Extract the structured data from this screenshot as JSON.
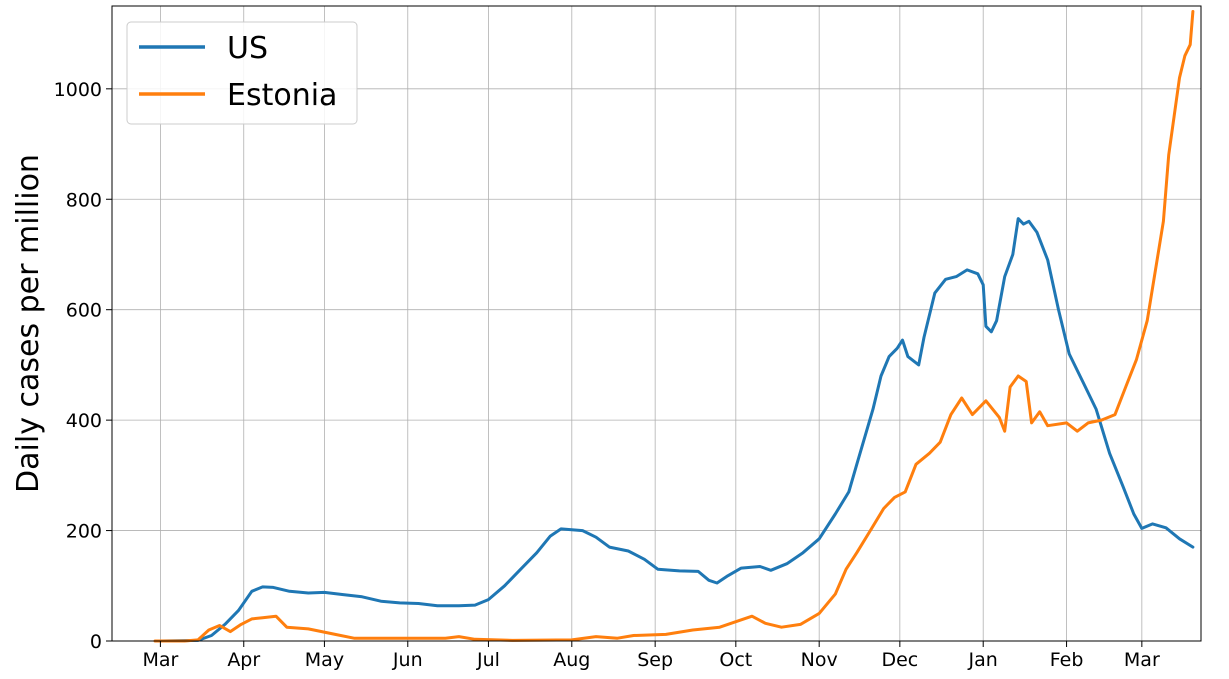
{
  "chart_data": {
    "type": "line",
    "title": "",
    "xlabel": "",
    "ylabel": "Daily cases per million",
    "ylim": [
      0,
      1150
    ],
    "xlim": [
      "2020-02-12",
      "2021-03-23"
    ],
    "yticks": [
      0,
      200,
      400,
      600,
      800,
      1000
    ],
    "xticks": [
      {
        "date": "2020-03-01",
        "label": "Mar"
      },
      {
        "date": "2020-04-01",
        "label": "Apr"
      },
      {
        "date": "2020-05-01",
        "label": "May"
      },
      {
        "date": "2020-06-01",
        "label": "Jun"
      },
      {
        "date": "2020-07-01",
        "label": "Jul"
      },
      {
        "date": "2020-08-01",
        "label": "Aug"
      },
      {
        "date": "2020-09-01",
        "label": "Sep"
      },
      {
        "date": "2020-10-01",
        "label": "Oct"
      },
      {
        "date": "2020-11-01",
        "label": "Nov"
      },
      {
        "date": "2020-12-01",
        "label": "Dec"
      },
      {
        "date": "2021-01-01",
        "label": "Jan"
      },
      {
        "date": "2021-02-01",
        "label": "Feb"
      },
      {
        "date": "2021-03-01",
        "label": "Mar"
      }
    ],
    "grid": true,
    "legend_position": "top-left",
    "series": [
      {
        "name": "US",
        "color": "#1f77b4",
        "points": [
          [
            "2020-03-01",
            0
          ],
          [
            "2020-03-15",
            1
          ],
          [
            "2020-03-20",
            10
          ],
          [
            "2020-03-25",
            30
          ],
          [
            "2020-03-30",
            55
          ],
          [
            "2020-04-04",
            90
          ],
          [
            "2020-04-08",
            98
          ],
          [
            "2020-04-12",
            97
          ],
          [
            "2020-04-18",
            90
          ],
          [
            "2020-04-25",
            87
          ],
          [
            "2020-05-01",
            88
          ],
          [
            "2020-05-08",
            84
          ],
          [
            "2020-05-15",
            80
          ],
          [
            "2020-05-22",
            72
          ],
          [
            "2020-05-29",
            69
          ],
          [
            "2020-06-05",
            68
          ],
          [
            "2020-06-12",
            64
          ],
          [
            "2020-06-20",
            64
          ],
          [
            "2020-06-26",
            65
          ],
          [
            "2020-07-01",
            75
          ],
          [
            "2020-07-07",
            100
          ],
          [
            "2020-07-13",
            130
          ],
          [
            "2020-07-19",
            160
          ],
          [
            "2020-07-24",
            190
          ],
          [
            "2020-07-28",
            203
          ],
          [
            "2020-08-05",
            200
          ],
          [
            "2020-08-10",
            188
          ],
          [
            "2020-08-15",
            170
          ],
          [
            "2020-08-22",
            163
          ],
          [
            "2020-08-28",
            148
          ],
          [
            "2020-09-02",
            130
          ],
          [
            "2020-09-10",
            127
          ],
          [
            "2020-09-17",
            126
          ],
          [
            "2020-09-21",
            110
          ],
          [
            "2020-09-24",
            105
          ],
          [
            "2020-09-28",
            118
          ],
          [
            "2020-10-03",
            132
          ],
          [
            "2020-10-10",
            135
          ],
          [
            "2020-10-14",
            128
          ],
          [
            "2020-10-20",
            140
          ],
          [
            "2020-10-26",
            160
          ],
          [
            "2020-11-01",
            185
          ],
          [
            "2020-11-07",
            230
          ],
          [
            "2020-11-12",
            270
          ],
          [
            "2020-11-15",
            320
          ],
          [
            "2020-11-18",
            370
          ],
          [
            "2020-11-21",
            420
          ],
          [
            "2020-11-24",
            480
          ],
          [
            "2020-11-27",
            515
          ],
          [
            "2020-11-30",
            530
          ],
          [
            "2020-12-02",
            545
          ],
          [
            "2020-12-04",
            515
          ],
          [
            "2020-12-08",
            500
          ],
          [
            "2020-12-10",
            550
          ],
          [
            "2020-12-14",
            630
          ],
          [
            "2020-12-18",
            655
          ],
          [
            "2020-12-22",
            660
          ],
          [
            "2020-12-26",
            672
          ],
          [
            "2020-12-30",
            665
          ],
          [
            "2021-01-01",
            645
          ],
          [
            "2021-01-02",
            570
          ],
          [
            "2021-01-04",
            560
          ],
          [
            "2021-01-06",
            580
          ],
          [
            "2021-01-09",
            660
          ],
          [
            "2021-01-12",
            700
          ],
          [
            "2021-01-14",
            765
          ],
          [
            "2021-01-16",
            755
          ],
          [
            "2021-01-18",
            760
          ],
          [
            "2021-01-21",
            740
          ],
          [
            "2021-01-25",
            690
          ],
          [
            "2021-01-29",
            600
          ],
          [
            "2021-02-02",
            520
          ],
          [
            "2021-02-07",
            470
          ],
          [
            "2021-02-12",
            420
          ],
          [
            "2021-02-17",
            340
          ],
          [
            "2021-02-22",
            280
          ],
          [
            "2021-02-26",
            230
          ],
          [
            "2021-03-01",
            204
          ],
          [
            "2021-03-05",
            212
          ],
          [
            "2021-03-10",
            205
          ],
          [
            "2021-03-15",
            185
          ],
          [
            "2021-03-20",
            170
          ]
        ]
      },
      {
        "name": "Estonia",
        "color": "#ff7f0e",
        "points": [
          [
            "2020-02-28",
            0
          ],
          [
            "2020-03-10",
            0
          ],
          [
            "2020-03-15",
            2
          ],
          [
            "2020-03-19",
            20
          ],
          [
            "2020-03-23",
            28
          ],
          [
            "2020-03-27",
            17
          ],
          [
            "2020-03-31",
            30
          ],
          [
            "2020-04-04",
            40
          ],
          [
            "2020-04-08",
            42
          ],
          [
            "2020-04-13",
            45
          ],
          [
            "2020-04-17",
            25
          ],
          [
            "2020-04-25",
            22
          ],
          [
            "2020-05-05",
            12
          ],
          [
            "2020-05-12",
            5
          ],
          [
            "2020-05-20",
            5
          ],
          [
            "2020-06-01",
            5
          ],
          [
            "2020-06-15",
            5
          ],
          [
            "2020-06-20",
            8
          ],
          [
            "2020-06-26",
            3
          ],
          [
            "2020-07-10",
            1
          ],
          [
            "2020-08-01",
            2
          ],
          [
            "2020-08-10",
            8
          ],
          [
            "2020-08-18",
            5
          ],
          [
            "2020-08-24",
            10
          ],
          [
            "2020-09-05",
            12
          ],
          [
            "2020-09-15",
            20
          ],
          [
            "2020-09-25",
            25
          ],
          [
            "2020-10-01",
            35
          ],
          [
            "2020-10-07",
            45
          ],
          [
            "2020-10-12",
            32
          ],
          [
            "2020-10-18",
            25
          ],
          [
            "2020-10-25",
            30
          ],
          [
            "2020-11-01",
            50
          ],
          [
            "2020-11-07",
            85
          ],
          [
            "2020-11-11",
            130
          ],
          [
            "2020-11-15",
            160
          ],
          [
            "2020-11-20",
            200
          ],
          [
            "2020-11-25",
            240
          ],
          [
            "2020-11-29",
            260
          ],
          [
            "2020-12-03",
            270
          ],
          [
            "2020-12-07",
            320
          ],
          [
            "2020-12-12",
            340
          ],
          [
            "2020-12-16",
            360
          ],
          [
            "2020-12-20",
            410
          ],
          [
            "2020-12-24",
            440
          ],
          [
            "2020-12-28",
            410
          ],
          [
            "2021-01-02",
            435
          ],
          [
            "2021-01-07",
            405
          ],
          [
            "2021-01-09",
            380
          ],
          [
            "2021-01-11",
            460
          ],
          [
            "2021-01-14",
            480
          ],
          [
            "2021-01-17",
            470
          ],
          [
            "2021-01-19",
            395
          ],
          [
            "2021-01-22",
            415
          ],
          [
            "2021-01-25",
            390
          ],
          [
            "2021-02-01",
            395
          ],
          [
            "2021-02-05",
            380
          ],
          [
            "2021-02-09",
            395
          ],
          [
            "2021-02-14",
            400
          ],
          [
            "2021-02-19",
            410
          ],
          [
            "2021-02-23",
            460
          ],
          [
            "2021-02-27",
            510
          ],
          [
            "2021-03-03",
            580
          ],
          [
            "2021-03-06",
            670
          ],
          [
            "2021-03-09",
            760
          ],
          [
            "2021-03-11",
            880
          ],
          [
            "2021-03-13",
            950
          ],
          [
            "2021-03-15",
            1020
          ],
          [
            "2021-03-17",
            1060
          ],
          [
            "2021-03-19",
            1080
          ],
          [
            "2021-03-20",
            1140
          ]
        ]
      }
    ]
  }
}
